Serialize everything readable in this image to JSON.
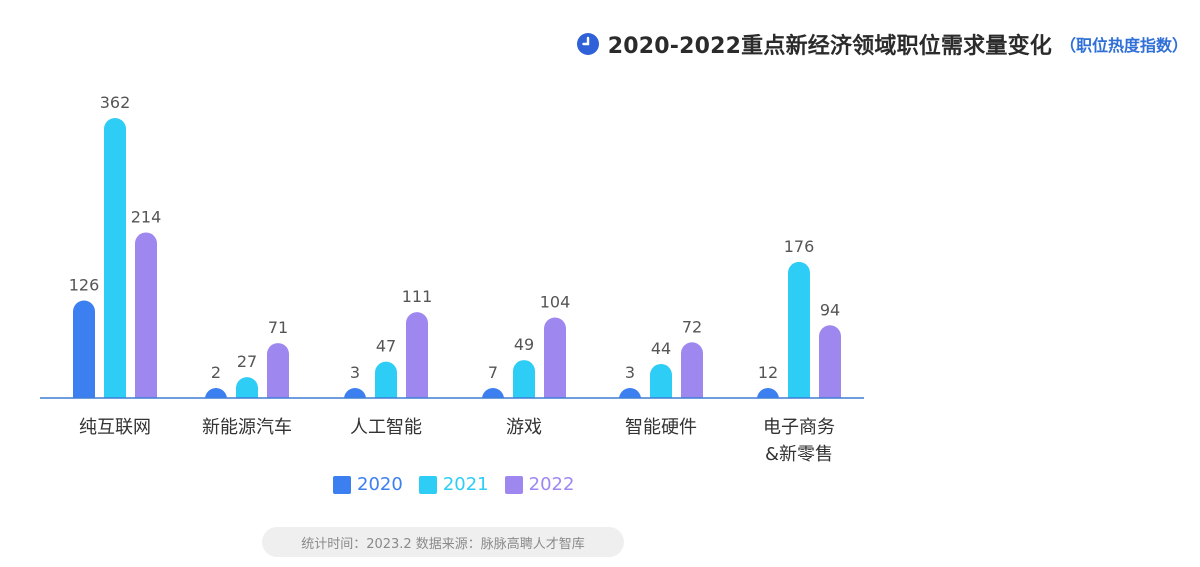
{
  "header": {
    "title": "2020-2022重点新经济领域职位需求量变化",
    "subtitle": "（职位热度指数）",
    "icon": "clock-icon"
  },
  "colors": {
    "2020": "#3b7ff0",
    "2021": "#2ecdf5",
    "2022": "#9f87f0",
    "axis": "#3f7fd6",
    "value_text": "#555555",
    "category_text": "#333333"
  },
  "chart_data": {
    "type": "bar",
    "title": "2020-2022重点新经济领域职位需求量变化",
    "subtitle": "（职位热度指数）",
    "categories": [
      "纯互联网",
      "新能源汽车",
      "人工智能",
      "游戏",
      "智能硬件",
      "电子商务\n&新零售"
    ],
    "series": [
      {
        "name": "2020",
        "values": [
          126,
          2,
          3,
          7,
          3,
          12
        ]
      },
      {
        "name": "2021",
        "values": [
          362,
          27,
          47,
          49,
          44,
          176
        ]
      },
      {
        "name": "2022",
        "values": [
          214,
          71,
          111,
          104,
          72,
          94
        ]
      }
    ],
    "xlabel": "",
    "ylabel": "",
    "ylim": [
      0,
      362
    ],
    "grid": false,
    "legend_position": "bottom"
  },
  "legend": [
    {
      "label": "2020",
      "color": "#3b7ff0"
    },
    {
      "label": "2021",
      "color": "#2ecdf5"
    },
    {
      "label": "2022",
      "color": "#9f87f0"
    }
  ],
  "footer": {
    "source": "统计时间：2023.2  数据来源：脉脉高聘人才智库"
  }
}
